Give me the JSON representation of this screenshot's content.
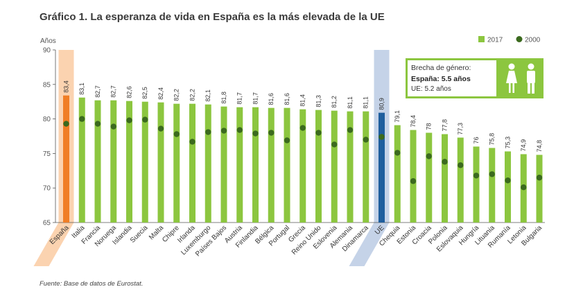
{
  "title": "Gráfico 1. La esperanza de vida en España es la más elevada de la UE",
  "source": "Fuente: Base de datos de Eurostat.",
  "colors": {
    "bar": "#8cc63f",
    "dot": "#3b6a1e",
    "spain_bar": "#f07e26",
    "spain_band": "#fbd3b0",
    "eu_bar": "#1f5f9e",
    "eu_band": "#c5d3e8",
    "panel": "#8cc63f"
  },
  "gap_box": {
    "title": "Brecha de género:",
    "spain": "España: 5.5 años",
    "eu": "UE: 5.2 años"
  },
  "chart_data": {
    "type": "bar",
    "ylabel": "Años",
    "ylim": [
      65,
      90
    ],
    "yticks": [
      65,
      70,
      75,
      80,
      85,
      90
    ],
    "legend": {
      "position": "top-right",
      "items": [
        "2017",
        "2000"
      ]
    },
    "grid": false,
    "categories": [
      "España",
      "Italia",
      "Francia",
      "Noruega",
      "Islandia",
      "Suecia",
      "Malta",
      "Chipre",
      "Irlanda",
      "Luxemburgo",
      "Países Bajos",
      "Austria",
      "Finlandia",
      "Bélgica",
      "Portugal",
      "Grecia",
      "Reino Unido",
      "Eslovenia",
      "Alemania",
      "Dinamarca",
      "UE",
      "Chequia",
      "Estonia",
      "Croacia",
      "Polonia",
      "Eslovaquia",
      "Hungría",
      "Lituania",
      "Rumanía",
      "Letonia",
      "Bulgaria"
    ],
    "series": [
      {
        "name": "2017",
        "type": "bar",
        "labels": [
          "83,4",
          "83,1",
          "82,7",
          "82,7",
          "82,6",
          "82,5",
          "82,4",
          "82,2",
          "82,2",
          "82,1",
          "81,8",
          "81,7",
          "81,7",
          "81,6",
          "81,6",
          "81,4",
          "81,3",
          "81,2",
          "81,1",
          "81,1",
          "80,9",
          "79,1",
          "78,4",
          "78",
          "77,8",
          "77,3",
          "76",
          "75,8",
          "75,3",
          "74,9",
          "74,8"
        ],
        "values": [
          83.4,
          83.1,
          82.7,
          82.7,
          82.6,
          82.5,
          82.4,
          82.2,
          82.2,
          82.1,
          81.8,
          81.7,
          81.7,
          81.6,
          81.6,
          81.4,
          81.3,
          81.2,
          81.1,
          81.1,
          80.9,
          79.1,
          78.4,
          78.0,
          77.8,
          77.3,
          76.0,
          75.8,
          75.3,
          74.9,
          74.8
        ]
      },
      {
        "name": "2000",
        "type": "scatter",
        "values": [
          79.3,
          80.0,
          79.3,
          78.9,
          79.8,
          79.9,
          78.6,
          77.8,
          76.7,
          78.1,
          78.3,
          78.4,
          77.9,
          78.0,
          76.9,
          78.7,
          78.0,
          76.3,
          78.4,
          77.0,
          77.4,
          75.1,
          71.0,
          74.6,
          73.8,
          73.3,
          71.8,
          72.0,
          71.1,
          70.1,
          71.5
        ]
      }
    ]
  }
}
